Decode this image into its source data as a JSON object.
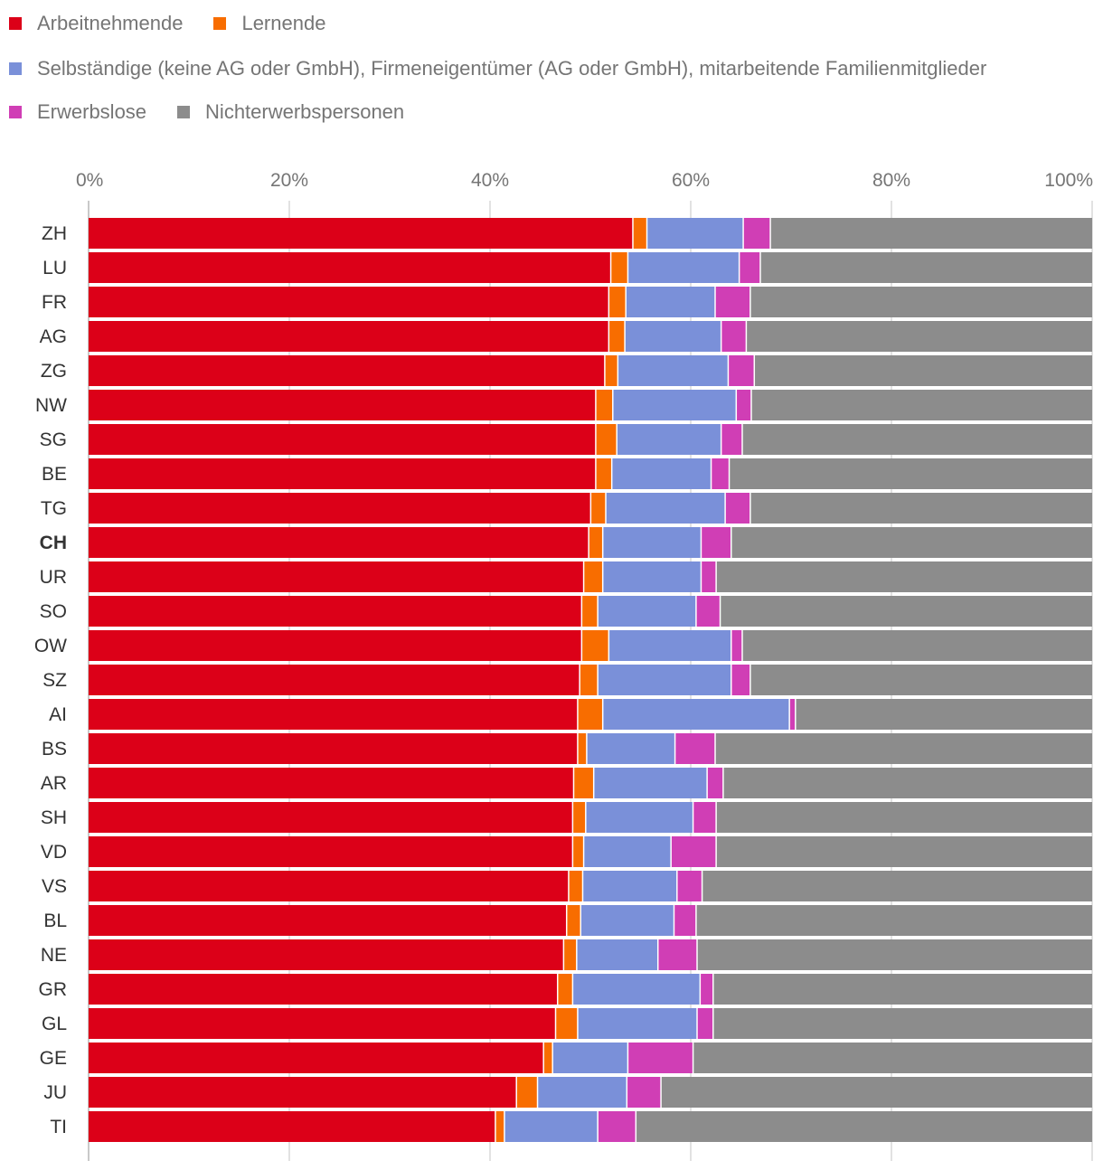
{
  "chart_data": {
    "type": "bar",
    "orientation": "horizontal",
    "stacked": true,
    "title": "",
    "xlabel": "",
    "ylabel": "",
    "xlim": [
      0,
      100
    ],
    "x_ticks": [
      "0%",
      "20%",
      "40%",
      "60%",
      "80%",
      "100%"
    ],
    "grid": "vertical",
    "legend_position": "top",
    "highlight_category": "CH",
    "categories": [
      "ZH",
      "LU",
      "FR",
      "AG",
      "ZG",
      "NW",
      "SG",
      "BE",
      "TG",
      "CH",
      "UR",
      "SO",
      "OW",
      "SZ",
      "AI",
      "BS",
      "AR",
      "SH",
      "VD",
      "VS",
      "BL",
      "NE",
      "GR",
      "GL",
      "GE",
      "JU",
      "TI"
    ],
    "series": [
      {
        "name": "Arbeitnehmende",
        "color": "#dc0018",
        "values": [
          54.3,
          52.1,
          51.9,
          51.9,
          51.5,
          50.6,
          50.6,
          50.6,
          50.1,
          49.9,
          49.4,
          49.2,
          49.2,
          49.0,
          48.8,
          48.8,
          48.4,
          48.3,
          48.3,
          47.9,
          47.7,
          47.4,
          46.8,
          46.6,
          45.4,
          42.7,
          40.6
        ]
      },
      {
        "name": "Lernende",
        "color": "#f86d00",
        "values": [
          1.4,
          1.7,
          1.7,
          1.6,
          1.3,
          1.7,
          2.1,
          1.6,
          1.5,
          1.4,
          1.9,
          1.6,
          2.7,
          1.8,
          2.5,
          0.9,
          2.0,
          1.3,
          1.1,
          1.4,
          1.4,
          1.3,
          1.5,
          2.2,
          0.9,
          2.1,
          0.9
        ]
      },
      {
        "name": "Selbständige (keine AG oder GmbH), Firmeneigentümer (AG oder GmbH), mitarbeitende Familienmitglieder",
        "color": "#7a90d9",
        "values": [
          9.6,
          11.1,
          8.9,
          9.6,
          11.0,
          12.3,
          10.4,
          9.9,
          11.9,
          9.8,
          9.8,
          9.8,
          12.2,
          13.3,
          18.6,
          8.8,
          11.3,
          10.7,
          8.7,
          9.4,
          9.3,
          8.1,
          12.7,
          11.9,
          7.5,
          8.9,
          9.3
        ]
      },
      {
        "name": "Erwerbslose",
        "color": "#d03eb5",
        "values": [
          2.7,
          2.1,
          3.5,
          2.5,
          2.6,
          1.5,
          2.1,
          1.8,
          2.5,
          3.0,
          1.5,
          2.4,
          1.1,
          1.9,
          0.6,
          4.0,
          1.6,
          2.3,
          4.5,
          2.5,
          2.2,
          3.9,
          1.3,
          1.6,
          6.5,
          3.4,
          3.8
        ]
      },
      {
        "name": "Nichterwerbspersonen",
        "color": "#8c8c8c",
        "values": [
          32.0,
          33.0,
          34.0,
          34.4,
          33.6,
          33.9,
          34.8,
          36.1,
          34.0,
          35.9,
          37.4,
          37.0,
          34.8,
          34.0,
          29.5,
          37.5,
          36.7,
          37.4,
          37.4,
          38.8,
          39.4,
          39.3,
          37.7,
          37.7,
          39.7,
          42.9,
          45.4
        ]
      }
    ]
  }
}
